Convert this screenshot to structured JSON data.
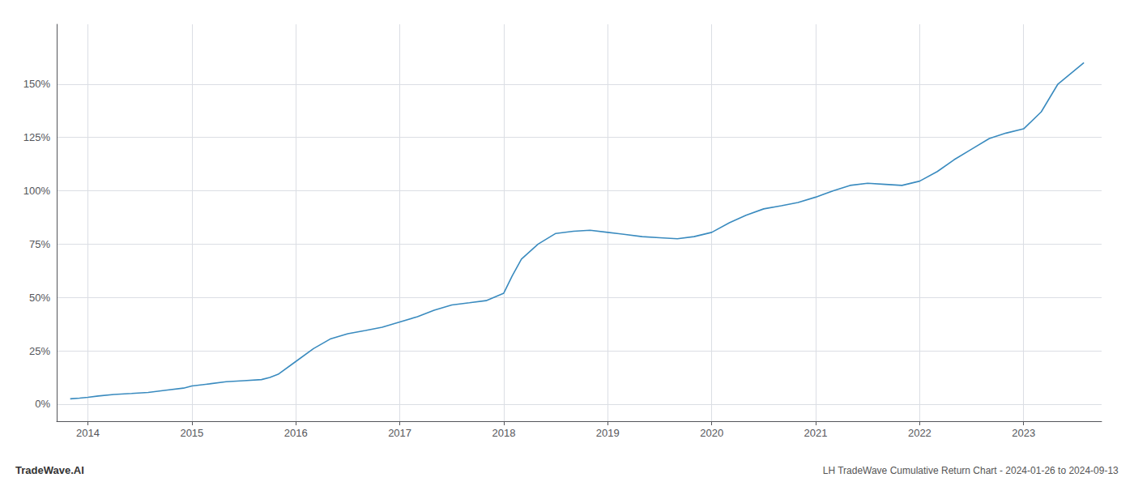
{
  "chart_data": {
    "type": "line",
    "title": "LH TradeWave Cumulative Return Chart - 2024-01-26 to 2024-09-13",
    "annotations": [
      "TradeWave.AI"
    ],
    "color": "#3a8bbf",
    "grid": true,
    "x": [
      2013.83,
      2013.92,
      2014.0,
      2014.1,
      2014.25,
      2014.42,
      2014.58,
      2014.75,
      2014.92,
      2015.0,
      2015.17,
      2015.33,
      2015.5,
      2015.67,
      2015.75,
      2015.83,
      2016.0,
      2016.17,
      2016.33,
      2016.5,
      2016.67,
      2016.83,
      2017.0,
      2017.17,
      2017.33,
      2017.5,
      2017.67,
      2017.83,
      2018.0,
      2018.08,
      2018.17,
      2018.33,
      2018.5,
      2018.67,
      2018.83,
      2019.0,
      2019.17,
      2019.33,
      2019.5,
      2019.67,
      2019.83,
      2020.0,
      2020.17,
      2020.33,
      2020.5,
      2020.67,
      2020.83,
      2021.0,
      2021.17,
      2021.33,
      2021.5,
      2021.67,
      2021.83,
      2022.0,
      2022.17,
      2022.33,
      2022.5,
      2022.67,
      2022.83,
      2023.0,
      2023.17,
      2023.33,
      2023.58
    ],
    "values": [
      2.5,
      2.8,
      3.2,
      3.8,
      4.5,
      5.0,
      5.5,
      6.5,
      7.5,
      8.5,
      9.5,
      10.5,
      11.0,
      11.5,
      12.5,
      14.0,
      20.0,
      26.0,
      30.5,
      33.0,
      34.5,
      36.0,
      38.5,
      41.0,
      44.0,
      46.5,
      47.5,
      48.5,
      52.0,
      60.0,
      68.0,
      75.0,
      80.0,
      81.0,
      81.5,
      80.5,
      79.5,
      78.5,
      78.0,
      77.5,
      78.5,
      80.5,
      85.0,
      88.5,
      91.5,
      93.0,
      94.5,
      97.0,
      100.0,
      102.5,
      103.5,
      103.0,
      102.5,
      104.5,
      109.0,
      114.5,
      119.5,
      124.5,
      127.0,
      129.0,
      137.0,
      150.0,
      160.0
    ],
    "xlim": [
      2013.7,
      2023.75
    ],
    "ylim": [
      -8,
      178
    ],
    "xticks": [
      2014,
      2015,
      2016,
      2017,
      2018,
      2019,
      2020,
      2021,
      2022,
      2023
    ],
    "yticks": [
      {
        "value": 0,
        "label": "0%"
      },
      {
        "value": 25,
        "label": "25%"
      },
      {
        "value": 50,
        "label": "50%"
      },
      {
        "value": 75,
        "label": "75%"
      },
      {
        "value": 100,
        "label": "100%"
      },
      {
        "value": 125,
        "label": "125%"
      },
      {
        "value": 150,
        "label": "150%"
      }
    ]
  }
}
